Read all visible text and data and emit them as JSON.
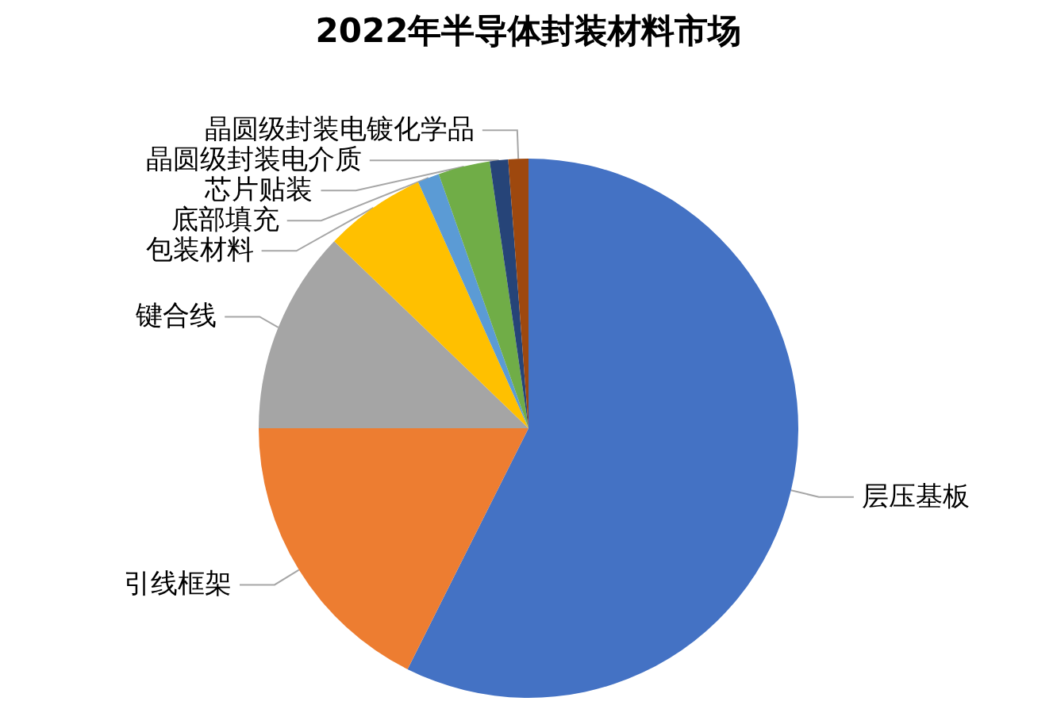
{
  "chart_data": {
    "type": "pie",
    "title": "2022年半导体封装材料市场",
    "categories": [
      "层压基板",
      "引线框架",
      "键合线",
      "包装材料",
      "底部填充",
      "芯片贴装",
      "晶圆级封装电介质",
      "晶圆级封装电镀化学品"
    ],
    "values": [
      57.4,
      17.6,
      12.2,
      6.1,
      1.3,
      3.1,
      1.1,
      1.2
    ],
    "colors": [
      "#4472c4",
      "#ed7d31",
      "#a5a5a5",
      "#ffc000",
      "#5b9bd5",
      "#70ad47",
      "#264478",
      "#9e480e"
    ],
    "legend": false
  }
}
